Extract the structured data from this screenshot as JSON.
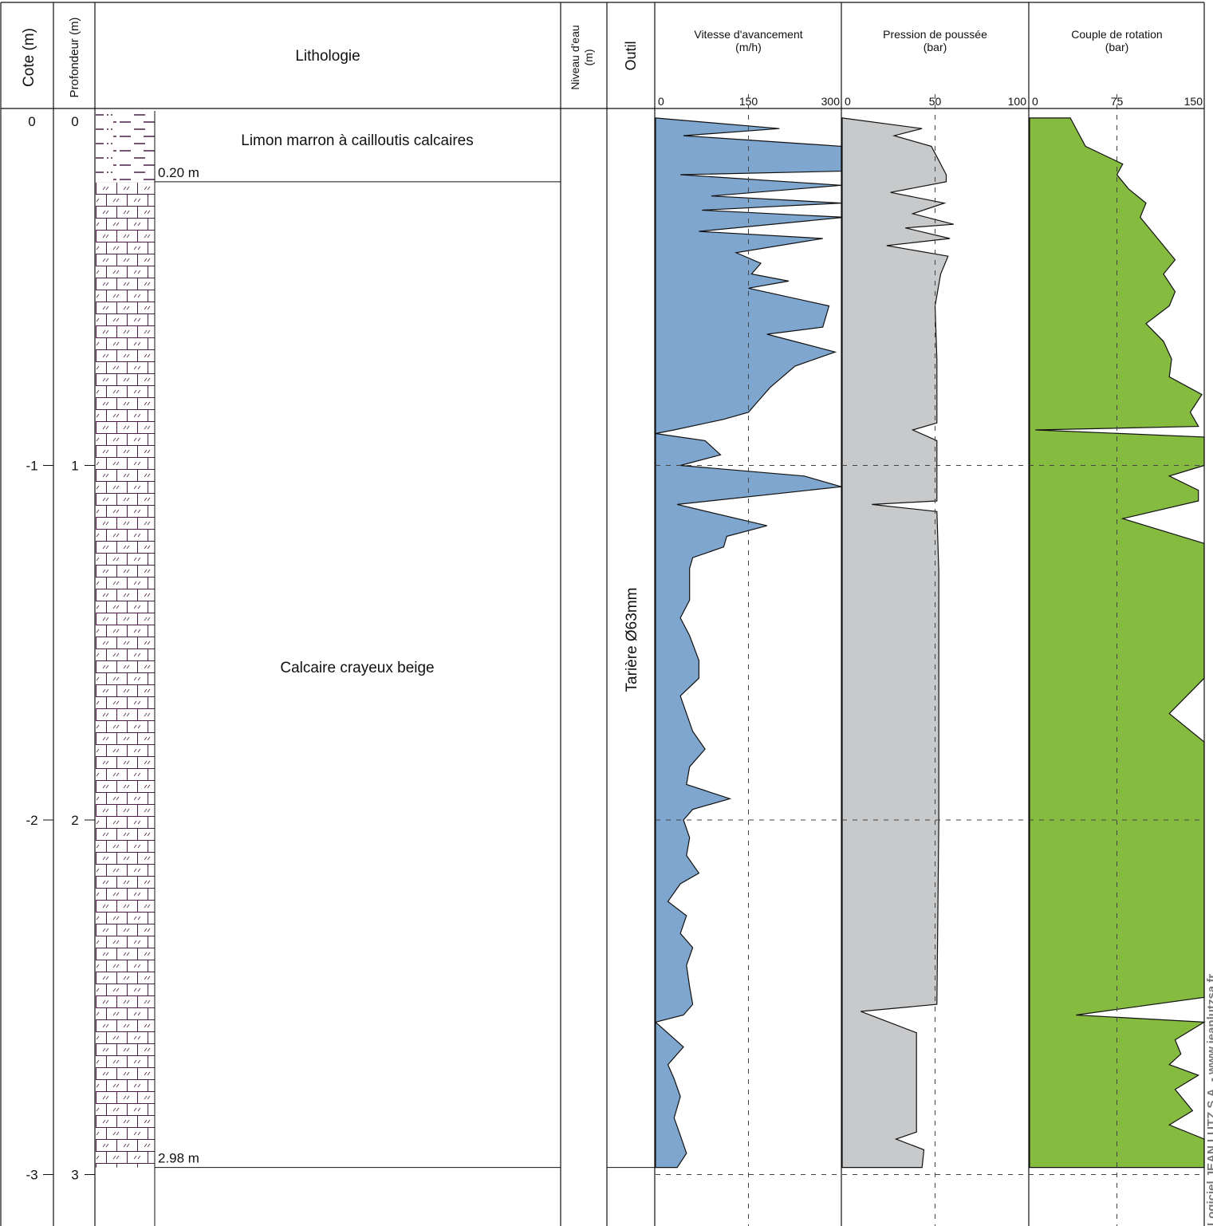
{
  "headers": {
    "cote": "Cote (m)",
    "profondeur": "Profondeur (m)",
    "lithologie": "Lithologie",
    "niveau_eau_line1": "Niveau d'eau",
    "niveau_eau_line2": "(m)",
    "outil": "Outil"
  },
  "depth_axis": {
    "cote_labels": [
      "0",
      "-1",
      "-2",
      "-3"
    ],
    "profondeur_labels": [
      "0",
      "1",
      "2",
      "3"
    ]
  },
  "layers": [
    {
      "description": "Limon marron à cailloutis calcaires",
      "base_label": "0.20 m",
      "top": 0,
      "base": 0.2
    },
    {
      "description": "Calcaire crayeux beige",
      "base_label": "2.98 m",
      "top": 0.2,
      "base": 2.98
    }
  ],
  "tool": "Tarière Ø63mm",
  "watermark": "Logiciel JEAN LUTZ S.A. - www.jeanlutzsa.fr",
  "colors": {
    "vitesse": "#7ea6cf",
    "pression": "#c8c9ca",
    "couple": "#85bb3f",
    "lithology_pattern": "#4a1d47",
    "grid": "#444444"
  },
  "chart_data": [
    {
      "type": "area",
      "title": "Vitesse d'avancement",
      "unit": "(m/h)",
      "ticks": [
        "0",
        "150",
        "300"
      ],
      "xlim": [
        0,
        300
      ],
      "points": [
        [
          0.02,
          0
        ],
        [
          0.05,
          200
        ],
        [
          0.07,
          45
        ],
        [
          0.1,
          300
        ],
        [
          0.17,
          300
        ],
        [
          0.18,
          40
        ],
        [
          0.21,
          300
        ],
        [
          0.24,
          90
        ],
        [
          0.26,
          300
        ],
        [
          0.28,
          75
        ],
        [
          0.3,
          305
        ],
        [
          0.34,
          70
        ],
        [
          0.36,
          270
        ],
        [
          0.4,
          130
        ],
        [
          0.43,
          170
        ],
        [
          0.46,
          155
        ],
        [
          0.48,
          215
        ],
        [
          0.5,
          150
        ],
        [
          0.55,
          280
        ],
        [
          0.61,
          270
        ],
        [
          0.63,
          180
        ],
        [
          0.68,
          290
        ],
        [
          0.72,
          225
        ],
        [
          0.78,
          185
        ],
        [
          0.81,
          170
        ],
        [
          0.85,
          150
        ],
        [
          0.87,
          110
        ],
        [
          0.9,
          30
        ],
        [
          0.91,
          0
        ],
        [
          0.93,
          80
        ],
        [
          0.97,
          105
        ],
        [
          1.0,
          40
        ],
        [
          1.03,
          240
        ],
        [
          1.06,
          300
        ],
        [
          1.11,
          35
        ],
        [
          1.17,
          180
        ],
        [
          1.2,
          115
        ],
        [
          1.23,
          110
        ],
        [
          1.26,
          60
        ],
        [
          1.29,
          55
        ],
        [
          1.38,
          55
        ],
        [
          1.43,
          40
        ],
        [
          1.48,
          55
        ],
        [
          1.55,
          70
        ],
        [
          1.6,
          70
        ],
        [
          1.65,
          40
        ],
        [
          1.7,
          50
        ],
        [
          1.75,
          60
        ],
        [
          1.8,
          80
        ],
        [
          1.85,
          55
        ],
        [
          1.9,
          50
        ],
        [
          1.94,
          120
        ],
        [
          1.97,
          60
        ],
        [
          2.0,
          45
        ],
        [
          2.05,
          55
        ],
        [
          2.1,
          50
        ],
        [
          2.15,
          70
        ],
        [
          2.18,
          40
        ],
        [
          2.23,
          20
        ],
        [
          2.27,
          50
        ],
        [
          2.32,
          40
        ],
        [
          2.36,
          60
        ],
        [
          2.41,
          50
        ],
        [
          2.47,
          55
        ],
        [
          2.52,
          60
        ],
        [
          2.55,
          45
        ],
        [
          2.57,
          0
        ],
        [
          2.64,
          45
        ],
        [
          2.69,
          20
        ],
        [
          2.73,
          30
        ],
        [
          2.78,
          40
        ],
        [
          2.84,
          30
        ],
        [
          2.89,
          40
        ],
        [
          2.94,
          50
        ],
        [
          2.98,
          35
        ]
      ]
    },
    {
      "type": "area",
      "title": "Pression de poussée",
      "unit": "(bar)",
      "ticks": [
        "0",
        "50",
        "100"
      ],
      "xlim": [
        0,
        100
      ],
      "points": [
        [
          0.02,
          0
        ],
        [
          0.05,
          43
        ],
        [
          0.07,
          28
        ],
        [
          0.1,
          48
        ],
        [
          0.14,
          52
        ],
        [
          0.18,
          56
        ],
        [
          0.2,
          56
        ],
        [
          0.23,
          26
        ],
        [
          0.26,
          55
        ],
        [
          0.29,
          38
        ],
        [
          0.32,
          60
        ],
        [
          0.33,
          34
        ],
        [
          0.36,
          58
        ],
        [
          0.38,
          24
        ],
        [
          0.41,
          57
        ],
        [
          0.46,
          53
        ],
        [
          0.55,
          50
        ],
        [
          0.7,
          51
        ],
        [
          0.88,
          51
        ],
        [
          0.9,
          38
        ],
        [
          0.93,
          51
        ],
        [
          1.0,
          51
        ],
        [
          1.1,
          51
        ],
        [
          1.11,
          16
        ],
        [
          1.13,
          51
        ],
        [
          1.3,
          52
        ],
        [
          2.0,
          52
        ],
        [
          2.52,
          51
        ],
        [
          2.54,
          10
        ],
        [
          2.6,
          40
        ],
        [
          2.88,
          40
        ],
        [
          2.9,
          29
        ],
        [
          2.93,
          44
        ],
        [
          2.98,
          43
        ]
      ]
    },
    {
      "type": "area",
      "title": "Couple de rotation",
      "unit": "(bar)",
      "ticks": [
        "0",
        "75",
        "150"
      ],
      "xlim": [
        0,
        150
      ],
      "points": [
        [
          0.02,
          35
        ],
        [
          0.1,
          48
        ],
        [
          0.15,
          80
        ],
        [
          0.18,
          75
        ],
        [
          0.22,
          85
        ],
        [
          0.26,
          100
        ],
        [
          0.3,
          95
        ],
        [
          0.34,
          105
        ],
        [
          0.38,
          115
        ],
        [
          0.42,
          125
        ],
        [
          0.46,
          115
        ],
        [
          0.51,
          125
        ],
        [
          0.55,
          120
        ],
        [
          0.6,
          100
        ],
        [
          0.65,
          115
        ],
        [
          0.7,
          122
        ],
        [
          0.75,
          120
        ],
        [
          0.8,
          148
        ],
        [
          0.85,
          138
        ],
        [
          0.89,
          145
        ],
        [
          0.9,
          5
        ],
        [
          0.92,
          150
        ],
        [
          1.0,
          150
        ],
        [
          1.03,
          120
        ],
        [
          1.07,
          145
        ],
        [
          1.1,
          145
        ],
        [
          1.15,
          80
        ],
        [
          1.22,
          150
        ],
        [
          1.35,
          150
        ],
        [
          1.4,
          150
        ],
        [
          1.5,
          150
        ],
        [
          1.6,
          150
        ],
        [
          1.7,
          120
        ],
        [
          1.78,
          150
        ],
        [
          1.8,
          150
        ],
        [
          1.9,
          150
        ],
        [
          2.0,
          150
        ],
        [
          2.5,
          150
        ],
        [
          2.55,
          40
        ],
        [
          2.57,
          150
        ],
        [
          2.62,
          125
        ],
        [
          2.66,
          130
        ],
        [
          2.69,
          120
        ],
        [
          2.72,
          145
        ],
        [
          2.76,
          125
        ],
        [
          2.82,
          140
        ],
        [
          2.86,
          120
        ],
        [
          2.9,
          150
        ],
        [
          2.98,
          150
        ]
      ]
    }
  ]
}
